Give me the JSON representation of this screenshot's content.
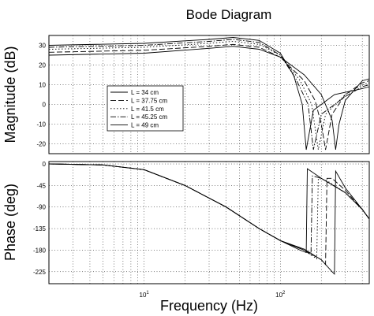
{
  "chart_data": {
    "type": "line",
    "title": "Bode Diagram",
    "xlabel": "Frequency (Hz)",
    "xscale": "log",
    "xlim": [
      2,
      450
    ],
    "x_tick_labels": [
      {
        "value": 10,
        "base": "10",
        "exp": "1"
      },
      {
        "value": 100,
        "base": "10",
        "exp": "2"
      }
    ],
    "legend_position": "inside-left",
    "grid": true,
    "panels": [
      {
        "name": "magnitude",
        "ylabel": "Magnitude (dB)",
        "ylim": [
          -25,
          35
        ],
        "yticks": [
          30,
          20,
          10,
          0,
          -10,
          -20
        ]
      },
      {
        "name": "phase",
        "ylabel": "Phase (deg)",
        "ylim": [
          -250,
          5
        ],
        "yticks": [
          0,
          -45,
          -90,
          -135,
          -180,
          -225
        ]
      }
    ],
    "series": [
      {
        "name": "L = 34 cm",
        "dash": "",
        "magnitude": {
          "x": [
            2,
            10,
            30,
            45,
            70,
            100,
            150,
            200,
            240,
            255,
            270,
            300,
            400,
            450
          ],
          "y": [
            25,
            26,
            28.5,
            29.5,
            28,
            24,
            15,
            5,
            -8,
            -23,
            -10,
            2,
            12,
            13
          ]
        },
        "phase": {
          "x": [
            2,
            5,
            10,
            20,
            40,
            70,
            100,
            150,
            200,
            240,
            250,
            255,
            300,
            400,
            450
          ],
          "y": [
            0,
            -2,
            -12,
            -45,
            -90,
            -135,
            -160,
            -178,
            -200,
            -225,
            -230,
            -15,
            -50,
            -95,
            -115
          ]
        }
      },
      {
        "name": "L = 37.75 cm",
        "dash": "7,3",
        "magnitude": {
          "x": [
            2,
            10,
            30,
            45,
            70,
            100,
            150,
            180,
            200,
            215,
            240,
            300,
            400,
            450
          ],
          "y": [
            26.5,
            27.5,
            29.5,
            30.5,
            29,
            24,
            12,
            2,
            -10,
            -23,
            -5,
            5,
            11,
            12
          ]
        },
        "phase": {
          "x": [
            2,
            5,
            10,
            20,
            40,
            70,
            100,
            150,
            200,
            215,
            220,
            240,
            300,
            400,
            450
          ],
          "y": [
            0,
            -2,
            -12,
            -45,
            -90,
            -135,
            -160,
            -180,
            -200,
            -210,
            -30,
            -30,
            -55,
            -95,
            -115
          ]
        }
      },
      {
        "name": "L = 41.5 cm",
        "dash": "1.5,2.5",
        "magnitude": {
          "x": [
            2,
            10,
            30,
            45,
            70,
            100,
            140,
            170,
            190,
            215,
            300,
            400,
            450
          ],
          "y": [
            28,
            29,
            31,
            32,
            30.5,
            25,
            12,
            0,
            -23,
            -5,
            5,
            10,
            11
          ]
        },
        "phase": {
          "x": [
            2,
            5,
            10,
            20,
            40,
            70,
            100,
            150,
            185,
            190,
            220,
            300,
            400,
            450
          ],
          "y": [
            0,
            -2,
            -12,
            -45,
            -90,
            -135,
            -160,
            -180,
            -198,
            -30,
            -35,
            -60,
            -95,
            -115
          ]
        }
      },
      {
        "name": "L = 45.25 cm",
        "dash": "7,2,1.5,2",
        "magnitude": {
          "x": [
            2,
            10,
            30,
            45,
            70,
            100,
            130,
            160,
            175,
            200,
            300,
            400,
            450
          ],
          "y": [
            29,
            30,
            32,
            33,
            31.5,
            25,
            13,
            0,
            -23,
            -5,
            4,
            9,
            10
          ]
        },
        "phase": {
          "x": [
            2,
            5,
            10,
            20,
            40,
            70,
            100,
            150,
            168,
            172,
            200,
            300,
            400,
            450
          ],
          "y": [
            0,
            -2,
            -12,
            -45,
            -90,
            -135,
            -160,
            -180,
            -190,
            -25,
            -30,
            -60,
            -95,
            -115
          ]
        }
      },
      {
        "name": "L = 49 cm",
        "dash": "",
        "magnitude": {
          "x": [
            2,
            10,
            30,
            45,
            70,
            100,
            125,
            145,
            155,
            175,
            250,
            400,
            450
          ],
          "y": [
            30,
            31,
            33,
            34,
            32.5,
            26,
            15,
            0,
            -23,
            -3,
            5,
            8,
            9
          ]
        },
        "phase": {
          "x": [
            2,
            5,
            10,
            20,
            40,
            70,
            100,
            140,
            155,
            158,
            200,
            300,
            400,
            450
          ],
          "y": [
            0,
            -2,
            -12,
            -45,
            -90,
            -135,
            -160,
            -180,
            -185,
            -10,
            -30,
            -60,
            -95,
            -115
          ]
        }
      }
    ]
  }
}
